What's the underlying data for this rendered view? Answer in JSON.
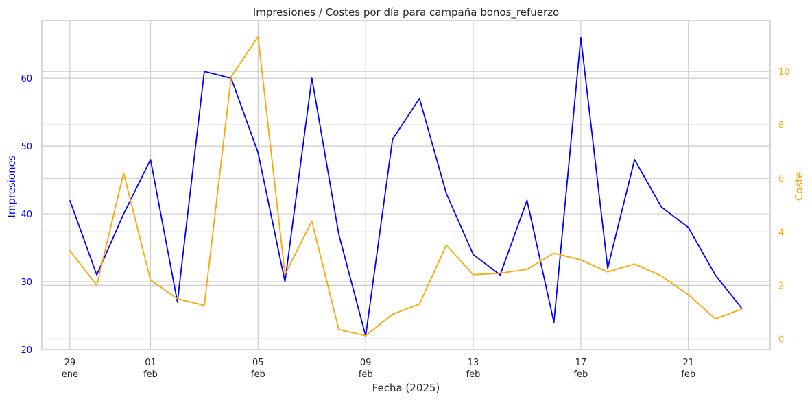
{
  "chart_data": {
    "type": "line",
    "title": "Impresiones / Costes por día para campaña bonos_refuerzo",
    "xlabel": "Fecha (2025)",
    "ylabel_left": "Impresiones",
    "ylabel_right": "Coste",
    "colors": {
      "impresiones": "#0000ff",
      "coste": "#ffa500",
      "grid": "#cccccc",
      "text": "#262626"
    },
    "grid": true,
    "x": [
      "2025-01-29",
      "2025-01-30",
      "2025-01-31",
      "2025-02-01",
      "2025-02-02",
      "2025-02-03",
      "2025-02-04",
      "2025-02-05",
      "2025-02-06",
      "2025-02-07",
      "2025-02-08",
      "2025-02-09",
      "2025-02-10",
      "2025-02-11",
      "2025-02-12",
      "2025-02-13",
      "2025-02-14",
      "2025-02-15",
      "2025-02-16",
      "2025-02-17",
      "2025-02-18",
      "2025-02-19",
      "2025-02-20",
      "2025-02-21",
      "2025-02-22",
      "2025-02-23"
    ],
    "xlim": [
      "2025-01-27T23:00",
      "2025-02-24T01:00"
    ],
    "xticks": [
      {
        "date": "2025-01-29",
        "day": "29",
        "month": "ene"
      },
      {
        "date": "2025-02-01",
        "day": "01",
        "month": "feb"
      },
      {
        "date": "2025-02-05",
        "day": "05",
        "month": "feb"
      },
      {
        "date": "2025-02-09",
        "day": "09",
        "month": "feb"
      },
      {
        "date": "2025-02-13",
        "day": "13",
        "month": "feb"
      },
      {
        "date": "2025-02-17",
        "day": "17",
        "month": "feb"
      },
      {
        "date": "2025-02-21",
        "day": "21",
        "month": "feb"
      }
    ],
    "ylim_left": [
      20,
      68.5
    ],
    "yticks_left": [
      20,
      30,
      40,
      50,
      60
    ],
    "ylim_right": [
      -0.4,
      11.9
    ],
    "yticks_right": [
      0,
      2,
      4,
      6,
      8,
      10
    ],
    "series": [
      {
        "name": "Impresiones",
        "axis": "left",
        "values": [
          42,
          31,
          40,
          48,
          27,
          61,
          60,
          49,
          30,
          60,
          37,
          22,
          51,
          57,
          43,
          34,
          31,
          42,
          24,
          66,
          32,
          48,
          41,
          38,
          31,
          26
        ]
      },
      {
        "name": "Coste",
        "axis": "right",
        "values": [
          3.3,
          2.0,
          6.2,
          2.2,
          1.5,
          1.25,
          9.8,
          11.3,
          2.4,
          4.4,
          0.35,
          0.12,
          0.92,
          1.3,
          3.5,
          2.4,
          2.45,
          2.6,
          3.2,
          2.95,
          2.5,
          2.8,
          2.35,
          1.65,
          0.75,
          1.12
        ]
      }
    ]
  }
}
